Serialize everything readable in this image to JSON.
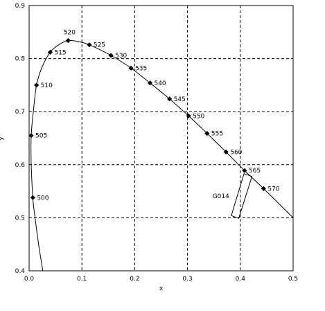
{
  "chart_data": {
    "type": "line",
    "xlabel": "x",
    "ylabel": "y",
    "xlim": [
      0.0,
      0.5
    ],
    "ylim": [
      0.4,
      0.9
    ],
    "grid": true,
    "x_ticks": [
      "0.0",
      "0.1",
      "0.2",
      "0.3",
      "0.4",
      "0.5"
    ],
    "y_ticks": [
      "0.4",
      "0.5",
      "0.6",
      "0.7",
      "0.8",
      "0.9"
    ],
    "locus_curve": [
      [
        0.026,
        0.4
      ],
      [
        0.018,
        0.45
      ],
      [
        0.01,
        0.51
      ],
      [
        0.007,
        0.538
      ],
      [
        0.004,
        0.6
      ],
      [
        0.004,
        0.655
      ],
      [
        0.008,
        0.7
      ],
      [
        0.014,
        0.75
      ],
      [
        0.025,
        0.785
      ],
      [
        0.04,
        0.812
      ],
      [
        0.056,
        0.826
      ],
      [
        0.074,
        0.834
      ],
      [
        0.094,
        0.832
      ],
      [
        0.114,
        0.826
      ],
      [
        0.155,
        0.806
      ],
      [
        0.193,
        0.782
      ],
      [
        0.229,
        0.754
      ],
      [
        0.266,
        0.724
      ],
      [
        0.302,
        0.692
      ],
      [
        0.337,
        0.659
      ],
      [
        0.373,
        0.624
      ],
      [
        0.408,
        0.589
      ],
      [
        0.444,
        0.555
      ],
      [
        0.5,
        0.5
      ]
    ],
    "wavelength_points": [
      {
        "label": "500",
        "x": 0.007,
        "y": 0.538
      },
      {
        "label": "505",
        "x": 0.004,
        "y": 0.655
      },
      {
        "label": "510",
        "x": 0.014,
        "y": 0.75
      },
      {
        "label": "515",
        "x": 0.04,
        "y": 0.812
      },
      {
        "label": "520",
        "x": 0.074,
        "y": 0.834
      },
      {
        "label": "525",
        "x": 0.114,
        "y": 0.826
      },
      {
        "label": "530",
        "x": 0.155,
        "y": 0.806
      },
      {
        "label": "535",
        "x": 0.193,
        "y": 0.782
      },
      {
        "label": "540",
        "x": 0.229,
        "y": 0.754
      },
      {
        "label": "545",
        "x": 0.266,
        "y": 0.724
      },
      {
        "label": "550",
        "x": 0.302,
        "y": 0.692
      },
      {
        "label": "555",
        "x": 0.337,
        "y": 0.659
      },
      {
        "label": "560",
        "x": 0.373,
        "y": 0.624
      },
      {
        "label": "565",
        "x": 0.408,
        "y": 0.589
      },
      {
        "label": "570",
        "x": 0.444,
        "y": 0.555
      }
    ],
    "region": {
      "label": "G014",
      "corners": [
        [
          0.383,
          0.504
        ],
        [
          0.397,
          0.499
        ],
        [
          0.422,
          0.578
        ],
        [
          0.407,
          0.583
        ]
      ]
    }
  }
}
